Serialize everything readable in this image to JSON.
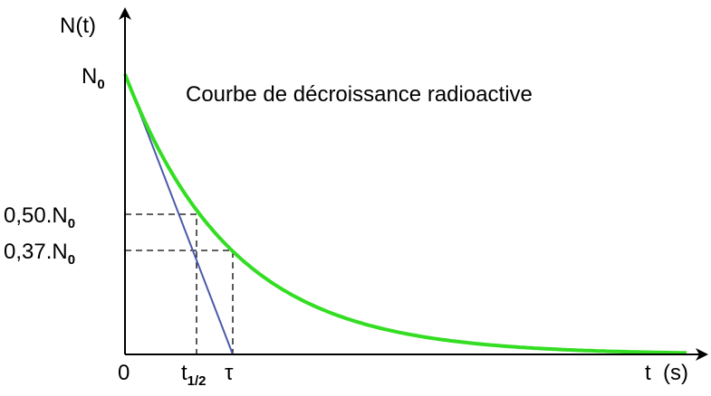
{
  "title": "Courbe de décroissance radioactive",
  "y_axis": {
    "label": "N(t)",
    "ticks": [
      {
        "text": "N",
        "sub": "0"
      },
      {
        "text": "0,50.N",
        "sub": "0"
      },
      {
        "text": "0,37.N",
        "sub": "0"
      }
    ]
  },
  "x_axis": {
    "label": "t  (s)",
    "ticks": [
      {
        "text": "0"
      },
      {
        "text": "t",
        "sub": "1/2"
      },
      {
        "text": "τ"
      }
    ]
  }
}
